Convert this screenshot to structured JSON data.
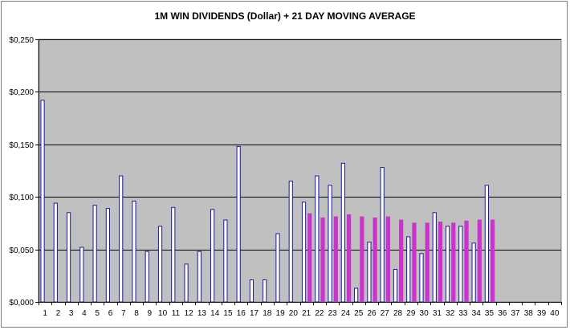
{
  "chart_data": {
    "type": "bar",
    "title": "1M WIN DIVIDENDS (Dollar) + 21 DAY MOVING AVERAGE",
    "xlabel": "",
    "ylabel": "",
    "categories": [
      "1",
      "2",
      "3",
      "4",
      "5",
      "6",
      "7",
      "8",
      "9",
      "10",
      "11",
      "12",
      "13",
      "14",
      "15",
      "16",
      "17",
      "18",
      "19",
      "20",
      "21",
      "22",
      "23",
      "24",
      "25",
      "26",
      "27",
      "28",
      "29",
      "30",
      "31",
      "32",
      "33",
      "34",
      "35",
      "36",
      "37",
      "38",
      "39",
      "40"
    ],
    "y_tick_labels": [
      "$0,000",
      "$0,050",
      "$0,100",
      "$0,150",
      "$0,200",
      "$0,250"
    ],
    "ylim": [
      0,
      0.25
    ],
    "grid": true,
    "legend": "none",
    "series": [
      {
        "color": "#1a1aa0",
        "fill": "#ffffff",
        "values": [
          0.192,
          0.094,
          0.085,
          0.052,
          0.092,
          0.089,
          0.12,
          0.096,
          0.048,
          0.072,
          0.09,
          0.036,
          0.048,
          0.088,
          0.078,
          0.148,
          0.021,
          0.021,
          0.065,
          0.115,
          0.095,
          0.12,
          0.111,
          0.132,
          0.013,
          0.057,
          0.128,
          0.031,
          0.062,
          0.046,
          0.085,
          0.072,
          0.072,
          0.056,
          0.111,
          null,
          null,
          null,
          null,
          null
        ]
      },
      {
        "color": "#cc33cc",
        "fill": "#cc33cc",
        "values": [
          null,
          null,
          null,
          null,
          null,
          null,
          null,
          null,
          null,
          null,
          null,
          null,
          null,
          null,
          null,
          null,
          null,
          null,
          null,
          null,
          0.084,
          0.08,
          0.081,
          0.083,
          0.081,
          0.08,
          0.081,
          0.078,
          0.075,
          0.075,
          0.076,
          0.075,
          0.077,
          0.078,
          0.078,
          null,
          null,
          null,
          null,
          null
        ]
      }
    ],
    "colors": {
      "plot_background": "#c0c0c0",
      "gridline": "#000000",
      "frame_border": "#7f7f7f"
    }
  }
}
